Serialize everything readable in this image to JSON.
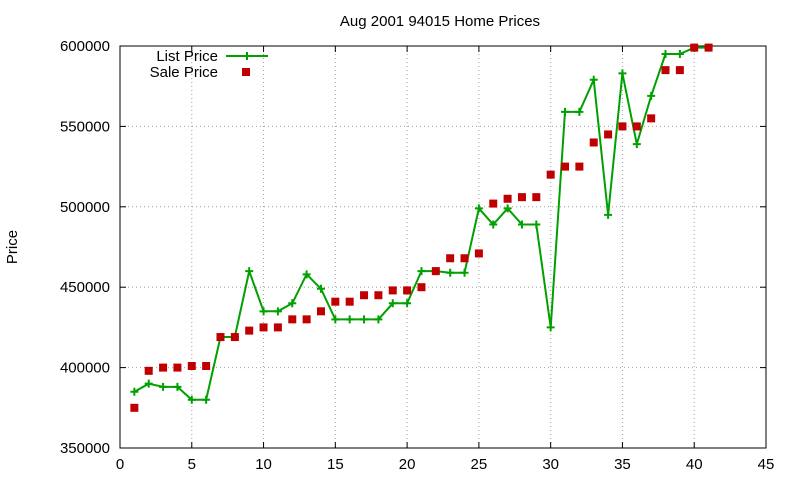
{
  "chart_data": {
    "type": "line",
    "title": "Aug 2001 94015 Home Prices",
    "xlabel": "",
    "ylabel": "Price",
    "xlim": [
      0,
      45
    ],
    "ylim": [
      350000,
      600000
    ],
    "xticks": [
      0,
      5,
      10,
      15,
      20,
      25,
      30,
      35,
      40,
      45
    ],
    "yticks": [
      350000,
      400000,
      450000,
      500000,
      550000,
      600000
    ],
    "grid": true,
    "legend_position": "top-left",
    "series": [
      {
        "name": "List Price",
        "style": "line-plus",
        "color": "#00a000",
        "points": [
          [
            1,
            385000
          ],
          [
            2,
            390000
          ],
          [
            3,
            388000
          ],
          [
            4,
            388000
          ],
          [
            5,
            380000
          ],
          [
            6,
            380000
          ],
          [
            7,
            419000
          ],
          [
            8,
            419000
          ],
          [
            9,
            460000
          ],
          [
            10,
            435000
          ],
          [
            11,
            435000
          ],
          [
            12,
            440000
          ],
          [
            13,
            458000
          ],
          [
            14,
            449000
          ],
          [
            15,
            430000
          ],
          [
            16,
            430000
          ],
          [
            17,
            430000
          ],
          [
            18,
            430000
          ],
          [
            19,
            440000
          ],
          [
            20,
            440000
          ],
          [
            21,
            460000
          ],
          [
            22,
            460000
          ],
          [
            23,
            459000
          ],
          [
            24,
            459000
          ],
          [
            25,
            499000
          ],
          [
            26,
            489000
          ],
          [
            27,
            499000
          ],
          [
            28,
            489000
          ],
          [
            29,
            489000
          ],
          [
            30,
            425000
          ],
          [
            31,
            559000
          ],
          [
            32,
            559000
          ],
          [
            33,
            579000
          ],
          [
            34,
            495000
          ],
          [
            35,
            583000
          ],
          [
            36,
            539000
          ],
          [
            37,
            569000
          ],
          [
            38,
            595000
          ],
          [
            39,
            595000
          ],
          [
            40,
            599000
          ],
          [
            41,
            599000
          ]
        ]
      },
      {
        "name": "Sale Price",
        "style": "square",
        "color": "#c00000",
        "points": [
          [
            1,
            375000
          ],
          [
            2,
            398000
          ],
          [
            3,
            400000
          ],
          [
            4,
            400000
          ],
          [
            5,
            401000
          ],
          [
            6,
            401000
          ],
          [
            7,
            419000
          ],
          [
            8,
            419000
          ],
          [
            9,
            423000
          ],
          [
            10,
            425000
          ],
          [
            11,
            425000
          ],
          [
            12,
            430000
          ],
          [
            13,
            430000
          ],
          [
            14,
            435000
          ],
          [
            15,
            441000
          ],
          [
            16,
            441000
          ],
          [
            17,
            445000
          ],
          [
            18,
            445000
          ],
          [
            19,
            448000
          ],
          [
            20,
            448000
          ],
          [
            21,
            450000
          ],
          [
            22,
            460000
          ],
          [
            23,
            468000
          ],
          [
            24,
            468000
          ],
          [
            25,
            471000
          ],
          [
            26,
            502000
          ],
          [
            27,
            505000
          ],
          [
            28,
            506000
          ],
          [
            29,
            506000
          ],
          [
            30,
            520000
          ],
          [
            31,
            525000
          ],
          [
            32,
            525000
          ],
          [
            33,
            540000
          ],
          [
            34,
            545000
          ],
          [
            35,
            550000
          ],
          [
            36,
            550000
          ],
          [
            37,
            555000
          ],
          [
            38,
            585000
          ],
          [
            39,
            585000
          ],
          [
            40,
            599000
          ],
          [
            41,
            599000
          ]
        ]
      }
    ]
  }
}
